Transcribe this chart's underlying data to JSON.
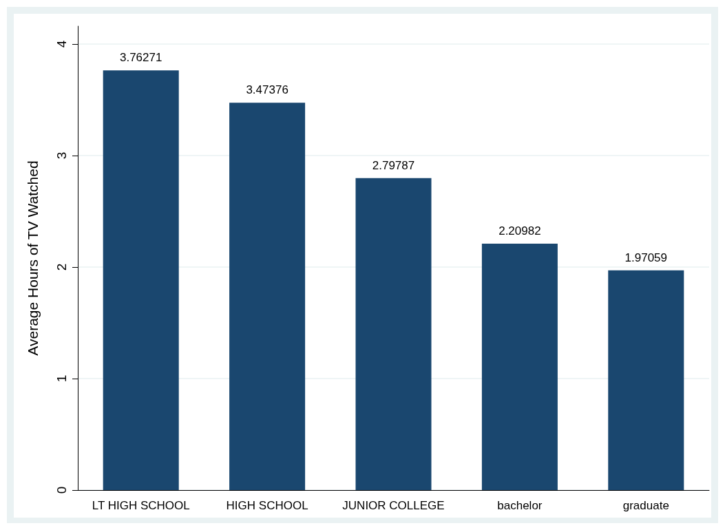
{
  "chart_data": {
    "type": "bar",
    "ylabel": "Average Hours of TV Watched",
    "categories": [
      "LT HIGH SCHOOL",
      "HIGH SCHOOL",
      "JUNIOR COLLEGE",
      "bachelor",
      "graduate"
    ],
    "values": [
      3.76271,
      3.47376,
      2.79787,
      2.20982,
      1.97059
    ],
    "color": "#1a476f",
    "ylim": [
      0,
      4.16
    ],
    "yticks": [
      0,
      1,
      2,
      3,
      4
    ],
    "grid": "y",
    "data_labels": true
  }
}
